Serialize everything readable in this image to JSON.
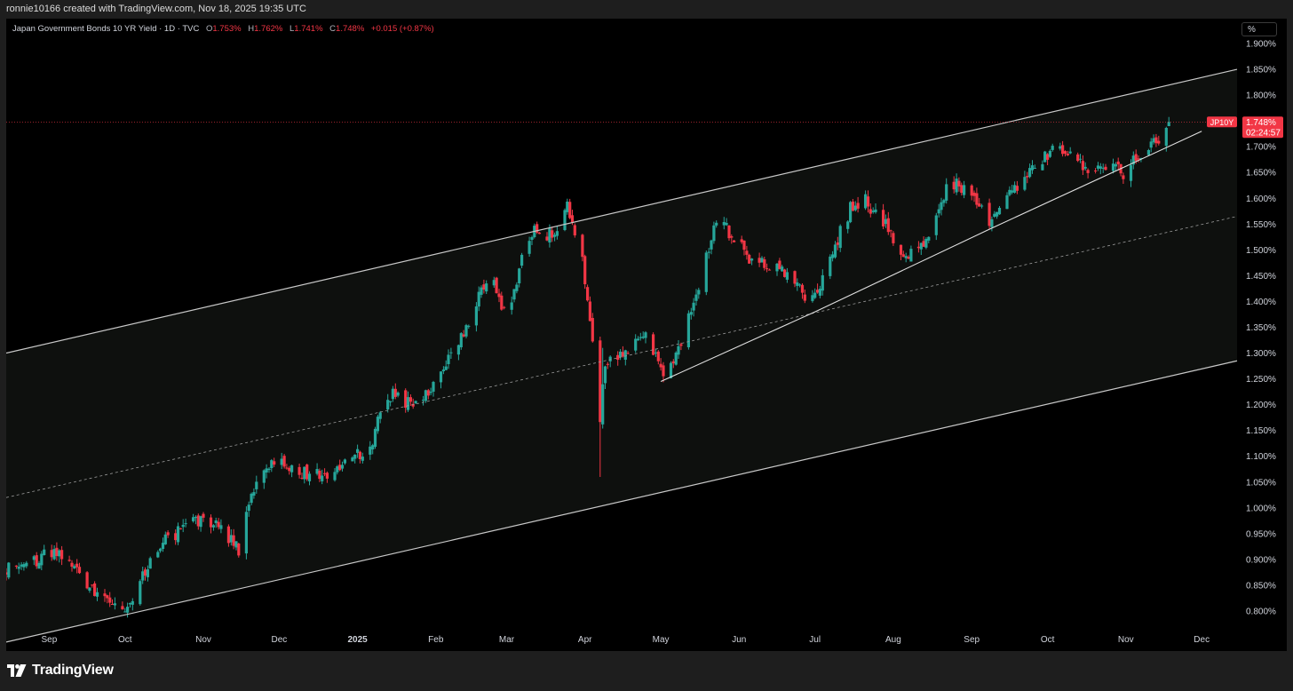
{
  "header": {
    "credit": "ronnie10166 created with TradingView.com, Nov 18, 2025 19:35 UTC"
  },
  "legend": {
    "title": "Japan Government Bonds 10 YR Yield · 1D · TVC",
    "o_label": "O",
    "o_value": "1.753%",
    "h_label": "H",
    "h_value": "1.762%",
    "l_label": "L",
    "l_value": "1.741%",
    "c_label": "C",
    "c_value": "1.748%",
    "change": "+0.015 (+0.87%)"
  },
  "footer": {
    "brand": "TradingView"
  },
  "colors": {
    "background": "#000000",
    "frame": "#1e1e1e",
    "up": "#26a69a",
    "down": "#f23645",
    "channel_line": "#c8c8c8",
    "channel_fill": "#0e100e",
    "text": "#d1d4dc"
  },
  "chart_data": {
    "type": "candlestick",
    "title": "Japan Government Bonds 10 YR Yield · 1D · TVC",
    "unit": "%",
    "ylim": [
      0.77,
      1.91
    ],
    "y_ticks": [
      "1.900%",
      "1.850%",
      "1.800%",
      "1.750%",
      "1.700%",
      "1.650%",
      "1.600%",
      "1.550%",
      "1.500%",
      "1.450%",
      "1.400%",
      "1.350%",
      "1.300%",
      "1.250%",
      "1.200%",
      "1.150%",
      "1.100%",
      "1.050%",
      "1.000%",
      "0.950%",
      "0.900%",
      "0.850%",
      "0.800%"
    ],
    "x_range": [
      "2024-08-15",
      "2025-12-15"
    ],
    "x_ticks": [
      {
        "label": "Sep",
        "date": "2024-09-01"
      },
      {
        "label": "Oct",
        "date": "2024-10-01"
      },
      {
        "label": "Nov",
        "date": "2024-11-01"
      },
      {
        "label": "Dec",
        "date": "2024-12-01"
      },
      {
        "label": "2025",
        "date": "2025-01-01"
      },
      {
        "label": "Feb",
        "date": "2025-02-01"
      },
      {
        "label": "Mar",
        "date": "2025-03-01"
      },
      {
        "label": "Apr",
        "date": "2025-04-01"
      },
      {
        "label": "May",
        "date": "2025-05-01"
      },
      {
        "label": "Jun",
        "date": "2025-06-01"
      },
      {
        "label": "Jul",
        "date": "2025-07-01"
      },
      {
        "label": "Aug",
        "date": "2025-08-01"
      },
      {
        "label": "Sep",
        "date": "2025-09-01"
      },
      {
        "label": "Oct",
        "date": "2025-10-01"
      },
      {
        "label": "Nov",
        "date": "2025-11-01"
      },
      {
        "label": "Dec",
        "date": "2025-12-01"
      }
    ],
    "path_close": [
      [
        "2024-08-15",
        0.88
      ],
      [
        "2024-08-22",
        0.89
      ],
      [
        "2024-09-01",
        0.91
      ],
      [
        "2024-09-08",
        0.9
      ],
      [
        "2024-09-15",
        0.86
      ],
      [
        "2024-09-22",
        0.83
      ],
      [
        "2024-09-28",
        0.82
      ],
      [
        "2024-10-02",
        0.81
      ],
      [
        "2024-10-07",
        0.86
      ],
      [
        "2024-10-12",
        0.9
      ],
      [
        "2024-10-17",
        0.94
      ],
      [
        "2024-10-24",
        0.96
      ],
      [
        "2024-10-31",
        0.98
      ],
      [
        "2024-11-05",
        0.97
      ],
      [
        "2024-11-10",
        0.95
      ],
      [
        "2024-11-15",
        0.915
      ],
      [
        "2024-11-18",
        0.99
      ],
      [
        "2024-11-22",
        1.04
      ],
      [
        "2024-11-27",
        1.08
      ],
      [
        "2024-12-03",
        1.09
      ],
      [
        "2024-12-09",
        1.07
      ],
      [
        "2024-12-15",
        1.06
      ],
      [
        "2024-12-22",
        1.07
      ],
      [
        "2024-12-28",
        1.09
      ],
      [
        "2025-01-01",
        1.1
      ],
      [
        "2025-01-07",
        1.13
      ],
      [
        "2025-01-10",
        1.18
      ],
      [
        "2025-01-15",
        1.23
      ],
      [
        "2025-01-20",
        1.2
      ],
      [
        "2025-01-26",
        1.21
      ],
      [
        "2025-02-01",
        1.25
      ],
      [
        "2025-02-07",
        1.3
      ],
      [
        "2025-02-13",
        1.35
      ],
      [
        "2025-02-19",
        1.42
      ],
      [
        "2025-02-23",
        1.46
      ],
      [
        "2025-02-26",
        1.4
      ],
      [
        "2025-03-01",
        1.38
      ],
      [
        "2025-03-04",
        1.42
      ],
      [
        "2025-03-08",
        1.5
      ],
      [
        "2025-03-12",
        1.54
      ],
      [
        "2025-03-16",
        1.52
      ],
      [
        "2025-03-20",
        1.54
      ],
      [
        "2025-03-25",
        1.58
      ],
      [
        "2025-03-28",
        1.54
      ],
      [
        "2025-03-31",
        1.49
      ],
      [
        "2025-04-03",
        1.36
      ],
      [
        "2025-04-07",
        1.18
      ],
      [
        "2025-04-09",
        1.28
      ],
      [
        "2025-04-12",
        1.3
      ],
      [
        "2025-04-18",
        1.3
      ],
      [
        "2025-04-24",
        1.34
      ],
      [
        "2025-04-29",
        1.3
      ],
      [
        "2025-05-02",
        1.25
      ],
      [
        "2025-05-08",
        1.3
      ],
      [
        "2025-05-13",
        1.38
      ],
      [
        "2025-05-18",
        1.46
      ],
      [
        "2025-05-22",
        1.55
      ],
      [
        "2025-05-27",
        1.54
      ],
      [
        "2025-06-01",
        1.51
      ],
      [
        "2025-06-06",
        1.48
      ],
      [
        "2025-06-12",
        1.47
      ],
      [
        "2025-06-17",
        1.46
      ],
      [
        "2025-06-21",
        1.44
      ],
      [
        "2025-06-25",
        1.42
      ],
      [
        "2025-06-29",
        1.4
      ],
      [
        "2025-07-03",
        1.43
      ],
      [
        "2025-07-09",
        1.51
      ],
      [
        "2025-07-15",
        1.58
      ],
      [
        "2025-07-20",
        1.6
      ],
      [
        "2025-07-25",
        1.57
      ],
      [
        "2025-07-30",
        1.54
      ],
      [
        "2025-08-04",
        1.5
      ],
      [
        "2025-08-09",
        1.49
      ],
      [
        "2025-08-14",
        1.52
      ],
      [
        "2025-08-19",
        1.58
      ],
      [
        "2025-08-23",
        1.63
      ],
      [
        "2025-08-29",
        1.62
      ],
      [
        "2025-09-04",
        1.59
      ],
      [
        "2025-09-08",
        1.56
      ],
      [
        "2025-09-13",
        1.6
      ],
      [
        "2025-09-19",
        1.62
      ],
      [
        "2025-09-24",
        1.66
      ],
      [
        "2025-09-30",
        1.68
      ],
      [
        "2025-10-05",
        1.7
      ],
      [
        "2025-10-10",
        1.69
      ],
      [
        "2025-10-15",
        1.66
      ],
      [
        "2025-10-20",
        1.65
      ],
      [
        "2025-10-25",
        1.66
      ],
      [
        "2025-10-31",
        1.65
      ],
      [
        "2025-11-06",
        1.68
      ],
      [
        "2025-11-11",
        1.7
      ],
      [
        "2025-11-14",
        1.71
      ],
      [
        "2025-11-17",
        1.74
      ],
      [
        "2025-11-18",
        1.748
      ]
    ],
    "last_price_label": {
      "symbol": "JP10Y",
      "price": "1.748%",
      "countdown": "02:24:57"
    },
    "channel": {
      "upper": [
        [
          "2024-08-15",
          1.3
        ],
        [
          "2025-12-15",
          1.85
        ]
      ],
      "mid": [
        [
          "2024-08-15",
          1.02
        ],
        [
          "2025-12-15",
          1.565
        ]
      ],
      "lower": [
        [
          "2024-08-15",
          0.74
        ],
        [
          "2025-12-15",
          1.285
        ]
      ]
    },
    "trendlines": [
      [
        [
          "2025-05-01",
          1.245
        ],
        [
          "2025-07-01",
          1.38
        ],
        [
          "2025-09-08",
          1.54
        ],
        [
          "2025-12-01",
          1.73
        ]
      ]
    ],
    "grid": false
  }
}
